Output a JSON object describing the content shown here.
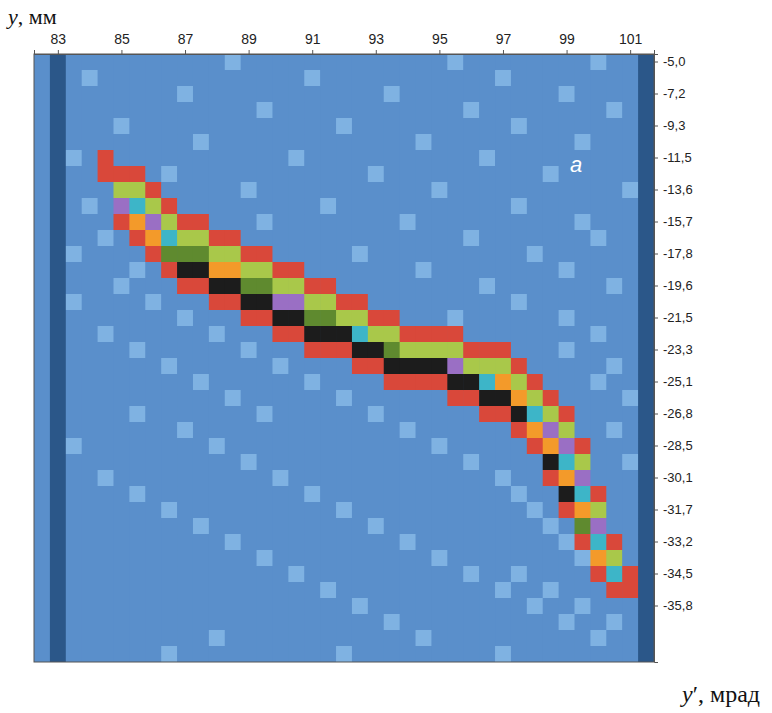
{
  "chart_data": {
    "type": "heatmap",
    "x_label": "y′, мрад",
    "y_label": "y, мм",
    "annotation": "a",
    "x": [
      82.5,
      83,
      83.5,
      84,
      84.5,
      85,
      85.5,
      86,
      86.5,
      87,
      87.5,
      88,
      88.5,
      89,
      89.5,
      90,
      90.5,
      91,
      91.5,
      92,
      92.5,
      93,
      93.5,
      94,
      94.5,
      95,
      95.5,
      96,
      96.5,
      97,
      97.5,
      98,
      98.5,
      99,
      99.5,
      100,
      100.5,
      101,
      101.5
    ],
    "xlim": [
      82.25,
      101.75
    ],
    "xticks": [
      83,
      85,
      87,
      89,
      91,
      93,
      95,
      97,
      99,
      101
    ],
    "categories": [
      "-5,0",
      null,
      "-7,2",
      null,
      "-9,3",
      null,
      "-11,5",
      null,
      "-13,6",
      null,
      "-15,7",
      null,
      "-17,8",
      null,
      "-19,6",
      null,
      "-21,5",
      null,
      "-23,3",
      null,
      "-25,1",
      null,
      "-26,8",
      null,
      "-28,5",
      null,
      "-30,1",
      null,
      "-31,7",
      null,
      "-33,2",
      null,
      "-34,5",
      null,
      "-35,8",
      null,
      null,
      null
    ],
    "colors": [
      "#2b5789",
      "#5a8fcb",
      "#7fb2e2",
      "#d9483a",
      "#a9c84a",
      "#9a6fc4",
      "#3db5c8",
      "#f39a2a",
      "#5f8a2f",
      "#1c1c1c"
    ],
    "cells": [
      [
        1,
        0,
        1,
        1,
        1,
        1,
        1,
        1,
        1,
        1,
        1,
        1,
        2,
        1,
        1,
        1,
        1,
        1,
        1,
        1,
        1,
        1,
        1,
        1,
        1,
        1,
        2,
        1,
        1,
        1,
        1,
        1,
        1,
        1,
        1,
        2,
        1,
        1,
        0
      ],
      [
        1,
        0,
        1,
        2,
        1,
        1,
        1,
        1,
        1,
        1,
        1,
        1,
        1,
        1,
        1,
        1,
        1,
        2,
        1,
        1,
        1,
        1,
        1,
        1,
        1,
        1,
        1,
        1,
        1,
        2,
        1,
        1,
        1,
        1,
        1,
        1,
        1,
        1,
        0
      ],
      [
        1,
        0,
        1,
        1,
        1,
        1,
        1,
        1,
        1,
        2,
        1,
        1,
        1,
        1,
        1,
        1,
        1,
        1,
        1,
        1,
        1,
        1,
        2,
        1,
        1,
        1,
        1,
        1,
        1,
        1,
        1,
        1,
        1,
        2,
        1,
        1,
        1,
        1,
        0
      ],
      [
        1,
        0,
        1,
        1,
        1,
        1,
        1,
        1,
        1,
        1,
        1,
        1,
        1,
        1,
        2,
        1,
        1,
        1,
        1,
        1,
        1,
        1,
        1,
        1,
        1,
        1,
        1,
        2,
        1,
        1,
        1,
        1,
        1,
        1,
        1,
        1,
        2,
        1,
        0
      ],
      [
        1,
        0,
        1,
        1,
        1,
        2,
        1,
        1,
        1,
        1,
        1,
        1,
        1,
        1,
        1,
        1,
        1,
        1,
        1,
        2,
        1,
        1,
        1,
        1,
        1,
        1,
        1,
        1,
        1,
        1,
        2,
        1,
        1,
        1,
        1,
        1,
        1,
        1,
        0
      ],
      [
        1,
        0,
        1,
        1,
        1,
        1,
        1,
        1,
        1,
        1,
        2,
        1,
        1,
        1,
        1,
        1,
        1,
        1,
        1,
        1,
        1,
        1,
        1,
        1,
        2,
        1,
        1,
        1,
        1,
        1,
        1,
        1,
        1,
        1,
        2,
        1,
        1,
        1,
        0
      ],
      [
        1,
        0,
        2,
        1,
        3,
        1,
        1,
        1,
        1,
        1,
        1,
        1,
        1,
        1,
        1,
        1,
        2,
        1,
        1,
        1,
        1,
        1,
        1,
        1,
        1,
        1,
        1,
        1,
        2,
        1,
        1,
        1,
        1,
        1,
        1,
        1,
        1,
        1,
        0
      ],
      [
        1,
        0,
        1,
        1,
        3,
        3,
        3,
        1,
        2,
        1,
        1,
        1,
        1,
        1,
        1,
        1,
        1,
        1,
        1,
        1,
        1,
        2,
        1,
        1,
        1,
        1,
        1,
        1,
        1,
        1,
        1,
        1,
        2,
        1,
        1,
        1,
        1,
        1,
        0
      ],
      [
        1,
        0,
        1,
        1,
        1,
        4,
        4,
        3,
        1,
        1,
        1,
        1,
        1,
        2,
        1,
        1,
        1,
        1,
        1,
        1,
        1,
        1,
        1,
        1,
        1,
        2,
        1,
        1,
        1,
        1,
        1,
        1,
        1,
        1,
        1,
        1,
        1,
        2,
        0
      ],
      [
        1,
        0,
        1,
        2,
        1,
        5,
        6,
        4,
        3,
        1,
        1,
        1,
        1,
        1,
        1,
        1,
        1,
        1,
        2,
        1,
        1,
        1,
        1,
        1,
        1,
        1,
        1,
        1,
        1,
        1,
        2,
        1,
        1,
        1,
        1,
        1,
        1,
        1,
        0
      ],
      [
        1,
        0,
        1,
        1,
        1,
        3,
        7,
        5,
        4,
        3,
        3,
        1,
        1,
        1,
        2,
        1,
        1,
        1,
        1,
        1,
        1,
        1,
        1,
        2,
        1,
        1,
        1,
        1,
        1,
        1,
        1,
        1,
        1,
        1,
        2,
        1,
        1,
        1,
        0
      ],
      [
        1,
        0,
        1,
        1,
        2,
        1,
        3,
        7,
        6,
        4,
        4,
        3,
        3,
        1,
        1,
        1,
        1,
        1,
        1,
        1,
        1,
        1,
        1,
        1,
        1,
        1,
        1,
        2,
        1,
        1,
        1,
        1,
        1,
        1,
        1,
        2,
        1,
        1,
        0
      ],
      [
        1,
        0,
        2,
        1,
        1,
        1,
        1,
        3,
        8,
        8,
        8,
        4,
        4,
        3,
        3,
        1,
        1,
        1,
        1,
        1,
        2,
        1,
        1,
        1,
        1,
        1,
        1,
        1,
        1,
        1,
        1,
        2,
        1,
        1,
        1,
        1,
        1,
        1,
        0
      ],
      [
        1,
        0,
        1,
        1,
        1,
        1,
        2,
        1,
        3,
        9,
        9,
        7,
        7,
        4,
        4,
        3,
        3,
        1,
        1,
        1,
        1,
        1,
        1,
        1,
        2,
        1,
        1,
        1,
        1,
        1,
        1,
        1,
        1,
        2,
        1,
        1,
        1,
        1,
        0
      ],
      [
        1,
        0,
        1,
        1,
        1,
        2,
        1,
        1,
        1,
        3,
        3,
        9,
        9,
        8,
        8,
        4,
        4,
        3,
        3,
        1,
        1,
        1,
        1,
        1,
        1,
        1,
        1,
        1,
        2,
        1,
        1,
        1,
        1,
        1,
        1,
        1,
        2,
        1,
        0
      ],
      [
        1,
        0,
        2,
        1,
        1,
        1,
        1,
        2,
        1,
        1,
        1,
        3,
        3,
        9,
        9,
        5,
        5,
        4,
        4,
        3,
        3,
        1,
        1,
        1,
        1,
        1,
        1,
        1,
        1,
        1,
        2,
        1,
        1,
        1,
        1,
        1,
        1,
        1,
        0
      ],
      [
        1,
        0,
        1,
        1,
        1,
        1,
        1,
        1,
        1,
        2,
        1,
        1,
        1,
        3,
        3,
        9,
        9,
        8,
        8,
        4,
        4,
        3,
        3,
        1,
        1,
        1,
        2,
        1,
        1,
        1,
        1,
        1,
        1,
        2,
        1,
        1,
        1,
        1,
        0
      ],
      [
        1,
        0,
        1,
        1,
        2,
        1,
        1,
        1,
        1,
        1,
        1,
        2,
        1,
        1,
        1,
        3,
        3,
        9,
        9,
        9,
        6,
        4,
        4,
        3,
        3,
        3,
        3,
        1,
        1,
        1,
        1,
        1,
        1,
        1,
        1,
        2,
        1,
        1,
        0
      ],
      [
        1,
        0,
        1,
        1,
        1,
        1,
        2,
        1,
        1,
        1,
        1,
        1,
        1,
        2,
        1,
        1,
        1,
        3,
        3,
        3,
        9,
        9,
        8,
        4,
        4,
        4,
        4,
        3,
        3,
        3,
        1,
        1,
        1,
        2,
        1,
        1,
        1,
        1,
        0
      ],
      [
        1,
        0,
        1,
        1,
        1,
        1,
        1,
        1,
        2,
        1,
        1,
        1,
        1,
        1,
        1,
        2,
        1,
        1,
        1,
        1,
        3,
        3,
        9,
        9,
        9,
        9,
        5,
        4,
        4,
        4,
        3,
        1,
        1,
        1,
        1,
        1,
        2,
        1,
        0
      ],
      [
        1,
        0,
        1,
        1,
        1,
        1,
        1,
        1,
        1,
        1,
        2,
        1,
        1,
        1,
        1,
        1,
        1,
        2,
        1,
        1,
        1,
        1,
        3,
        3,
        3,
        3,
        9,
        9,
        6,
        7,
        4,
        3,
        1,
        1,
        1,
        2,
        1,
        1,
        0
      ],
      [
        1,
        0,
        1,
        1,
        1,
        1,
        1,
        1,
        1,
        1,
        1,
        1,
        2,
        1,
        1,
        1,
        1,
        1,
        1,
        2,
        1,
        1,
        1,
        1,
        1,
        1,
        3,
        3,
        9,
        9,
        7,
        4,
        3,
        1,
        1,
        1,
        1,
        2,
        0
      ],
      [
        1,
        0,
        1,
        1,
        1,
        1,
        2,
        1,
        1,
        1,
        1,
        1,
        1,
        1,
        2,
        1,
        1,
        1,
        1,
        1,
        1,
        2,
        1,
        1,
        1,
        1,
        1,
        1,
        3,
        3,
        9,
        6,
        4,
        3,
        1,
        1,
        1,
        1,
        0
      ],
      [
        1,
        0,
        1,
        1,
        1,
        1,
        1,
        1,
        1,
        2,
        1,
        1,
        1,
        1,
        1,
        1,
        1,
        1,
        1,
        1,
        1,
        1,
        1,
        2,
        1,
        1,
        1,
        1,
        1,
        1,
        3,
        7,
        5,
        4,
        1,
        1,
        2,
        1,
        0
      ],
      [
        1,
        0,
        2,
        1,
        1,
        1,
        1,
        1,
        1,
        1,
        1,
        2,
        1,
        1,
        1,
        1,
        1,
        1,
        1,
        1,
        1,
        1,
        1,
        1,
        1,
        2,
        1,
        1,
        1,
        1,
        1,
        3,
        7,
        5,
        3,
        1,
        1,
        1,
        0
      ],
      [
        1,
        0,
        1,
        1,
        1,
        1,
        1,
        1,
        1,
        1,
        1,
        1,
        1,
        2,
        1,
        1,
        1,
        1,
        1,
        1,
        1,
        1,
        1,
        1,
        1,
        1,
        1,
        2,
        1,
        1,
        1,
        1,
        9,
        6,
        4,
        1,
        1,
        2,
        0
      ],
      [
        1,
        0,
        1,
        1,
        2,
        1,
        1,
        1,
        1,
        1,
        1,
        1,
        1,
        1,
        1,
        2,
        1,
        1,
        1,
        1,
        1,
        1,
        1,
        1,
        1,
        1,
        1,
        1,
        1,
        2,
        1,
        1,
        3,
        7,
        5,
        1,
        1,
        1,
        0
      ],
      [
        1,
        0,
        1,
        1,
        1,
        1,
        2,
        1,
        1,
        1,
        1,
        1,
        1,
        1,
        1,
        1,
        1,
        2,
        1,
        1,
        1,
        1,
        1,
        1,
        1,
        1,
        1,
        1,
        1,
        1,
        2,
        1,
        1,
        9,
        6,
        3,
        1,
        1,
        0
      ],
      [
        1,
        0,
        1,
        1,
        1,
        1,
        1,
        1,
        2,
        1,
        1,
        1,
        1,
        1,
        1,
        1,
        1,
        1,
        1,
        2,
        1,
        1,
        1,
        1,
        1,
        1,
        1,
        1,
        1,
        1,
        1,
        2,
        1,
        3,
        7,
        4,
        1,
        1,
        0
      ],
      [
        1,
        0,
        1,
        1,
        1,
        1,
        1,
        1,
        1,
        1,
        2,
        1,
        1,
        1,
        1,
        1,
        1,
        1,
        1,
        1,
        1,
        2,
        1,
        1,
        1,
        1,
        1,
        1,
        1,
        1,
        1,
        1,
        2,
        1,
        8,
        5,
        1,
        1,
        0
      ],
      [
        1,
        0,
        1,
        1,
        1,
        1,
        1,
        1,
        1,
        1,
        1,
        1,
        2,
        1,
        1,
        1,
        1,
        1,
        1,
        1,
        1,
        1,
        1,
        2,
        1,
        1,
        1,
        1,
        1,
        1,
        1,
        1,
        1,
        2,
        3,
        6,
        3,
        1,
        0
      ],
      [
        1,
        0,
        1,
        1,
        1,
        1,
        1,
        1,
        1,
        1,
        1,
        1,
        1,
        1,
        2,
        1,
        1,
        1,
        1,
        1,
        1,
        1,
        1,
        1,
        1,
        2,
        1,
        1,
        1,
        1,
        1,
        1,
        1,
        1,
        2,
        7,
        4,
        1,
        0
      ],
      [
        1,
        0,
        1,
        1,
        1,
        1,
        1,
        1,
        1,
        1,
        1,
        1,
        1,
        1,
        1,
        1,
        2,
        1,
        1,
        1,
        1,
        1,
        1,
        1,
        1,
        1,
        1,
        2,
        1,
        1,
        2,
        1,
        1,
        1,
        1,
        3,
        6,
        3,
        0
      ],
      [
        1,
        0,
        1,
        1,
        1,
        1,
        1,
        1,
        1,
        1,
        1,
        1,
        1,
        1,
        1,
        1,
        1,
        1,
        2,
        1,
        1,
        1,
        1,
        1,
        1,
        1,
        1,
        1,
        1,
        2,
        1,
        1,
        2,
        1,
        1,
        1,
        3,
        3,
        0
      ],
      [
        1,
        0,
        1,
        1,
        1,
        1,
        1,
        1,
        1,
        1,
        1,
        1,
        1,
        1,
        1,
        1,
        1,
        1,
        1,
        1,
        2,
        1,
        1,
        1,
        1,
        1,
        1,
        1,
        1,
        1,
        1,
        2,
        1,
        1,
        2,
        1,
        1,
        1,
        0
      ],
      [
        1,
        0,
        1,
        1,
        1,
        1,
        1,
        1,
        1,
        1,
        1,
        1,
        1,
        1,
        1,
        1,
        1,
        1,
        1,
        1,
        1,
        1,
        2,
        1,
        1,
        1,
        1,
        1,
        1,
        1,
        1,
        1,
        1,
        2,
        1,
        1,
        2,
        1,
        0
      ],
      [
        1,
        0,
        1,
        1,
        1,
        1,
        1,
        1,
        1,
        1,
        1,
        2,
        1,
        1,
        1,
        1,
        1,
        1,
        1,
        1,
        1,
        1,
        1,
        1,
        2,
        1,
        1,
        1,
        1,
        1,
        1,
        1,
        1,
        1,
        1,
        2,
        1,
        1,
        0
      ],
      [
        1,
        0,
        1,
        1,
        1,
        1,
        1,
        1,
        2,
        1,
        1,
        1,
        1,
        1,
        1,
        1,
        1,
        1,
        1,
        2,
        1,
        1,
        1,
        1,
        1,
        1,
        1,
        1,
        1,
        2,
        1,
        1,
        1,
        1,
        1,
        1,
        1,
        1,
        0
      ]
    ]
  }
}
